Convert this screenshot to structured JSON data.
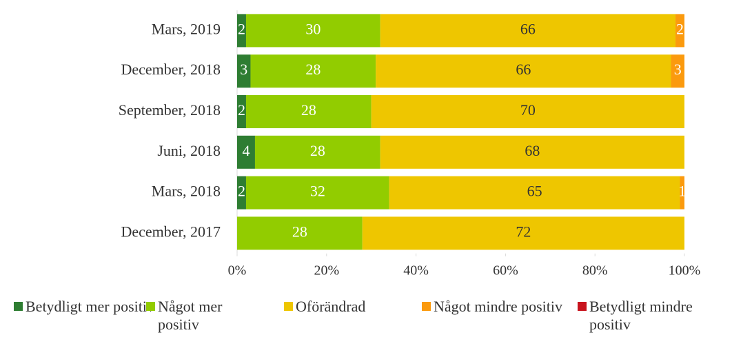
{
  "chart_data": {
    "type": "stacked-bar-horizontal",
    "categories": [
      "Mars, 2019",
      "December, 2018",
      "September, 2018",
      "Juni, 2018",
      "Mars, 2018",
      "December, 2017"
    ],
    "series": [
      {
        "name": "Betydligt mer positiv",
        "color": "#2e7d32",
        "values": [
          2,
          3,
          2,
          4,
          2,
          null
        ]
      },
      {
        "name": "Något mer positiv",
        "color": "#92cc00",
        "values": [
          30,
          28,
          28,
          28,
          32,
          28
        ]
      },
      {
        "name": "Oförändrad",
        "color": "#eec600",
        "values": [
          66,
          66,
          70,
          68,
          65,
          72
        ]
      },
      {
        "name": "Något mindre positiv",
        "color": "#fb9a0e",
        "values": [
          2,
          3,
          null,
          null,
          1,
          null
        ]
      },
      {
        "name": "Betydligt mindre positiv",
        "color": "#c8141e",
        "values": [
          null,
          null,
          null,
          null,
          null,
          null
        ]
      }
    ],
    "xlim": [
      0,
      100
    ],
    "xticks": [
      {
        "value": 0,
        "label": "0%"
      },
      {
        "value": 20,
        "label": "20%"
      },
      {
        "value": 40,
        "label": "40%"
      },
      {
        "value": 60,
        "label": "60%"
      },
      {
        "value": 80,
        "label": "80%"
      },
      {
        "value": 100,
        "label": "100%"
      }
    ],
    "legend": "bottom"
  }
}
